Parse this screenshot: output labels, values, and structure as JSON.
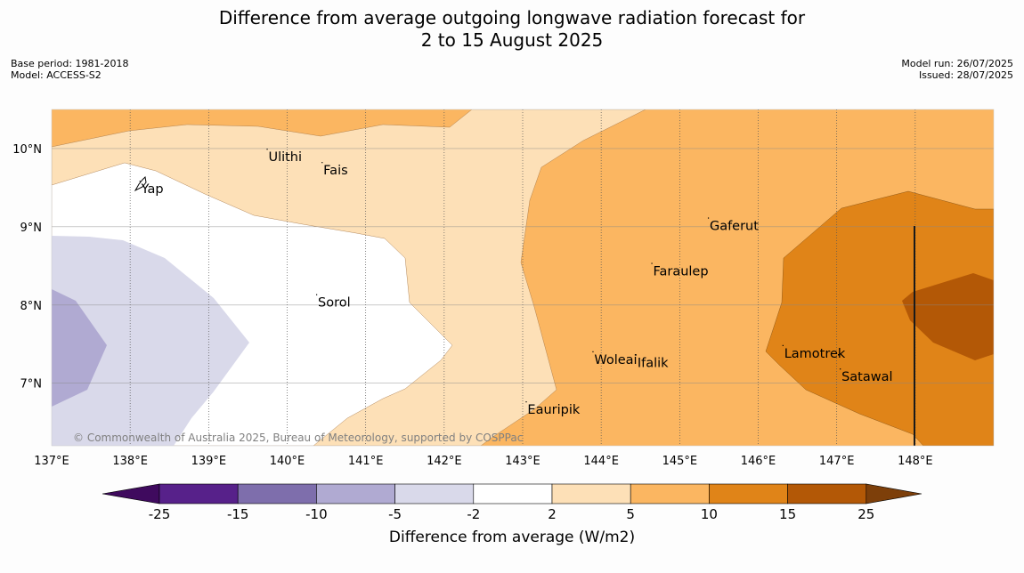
{
  "title": {
    "line1": "Difference from average outgoing longwave radiation forecast for",
    "line2": "2 to 15 August 2025"
  },
  "meta_left": {
    "base_period": "Base period: 1981-2018",
    "model": "Model: ACCESS-S2"
  },
  "meta_right": {
    "model_run": "Model run: 26/07/2025",
    "issued": "Issued: 28/07/2025"
  },
  "map": {
    "lon_range": [
      137,
      149
    ],
    "lat_range": [
      6.2,
      10.5
    ],
    "lon_ticks": [
      137,
      138,
      139,
      140,
      141,
      142,
      143,
      144,
      145,
      146,
      147,
      148
    ],
    "lon_tick_labels": [
      "137°E",
      "138°E",
      "139°E",
      "140°E",
      "141°E",
      "142°E",
      "143°E",
      "144°E",
      "145°E",
      "146°E",
      "147°E",
      "148°E"
    ],
    "lat_ticks": [
      7,
      8,
      9,
      10
    ],
    "lat_tick_labels": [
      "7°N",
      "8°N",
      "9°N",
      "10°N"
    ],
    "copyright": "© Commonwealth of Australia 2025, Bureau of Meteorology, supported by COSPPac",
    "places": [
      {
        "name": "Ulithi",
        "lon": 139.75,
        "lat": 9.93
      },
      {
        "name": "Fais",
        "lon": 140.45,
        "lat": 9.76
      },
      {
        "name": "Yap",
        "lon": 138.13,
        "lat": 9.52
      },
      {
        "name": "Gaferut",
        "lon": 145.37,
        "lat": 9.05
      },
      {
        "name": "Faraulep",
        "lon": 144.65,
        "lat": 8.47
      },
      {
        "name": "Sorol",
        "lon": 140.38,
        "lat": 8.07
      },
      {
        "name": "Woleai",
        "lon": 143.9,
        "lat": 7.34
      },
      {
        "name": "Ifalik",
        "lon": 144.45,
        "lat": 7.3
      },
      {
        "name": "Lamotrek",
        "lon": 146.32,
        "lat": 7.42
      },
      {
        "name": "Satawal",
        "lon": 147.05,
        "lat": 7.12
      },
      {
        "name": "Eauripik",
        "lon": 143.05,
        "lat": 6.7
      }
    ]
  },
  "colorbar": {
    "title": "Difference from average (W/m2)",
    "tick_labels": [
      "-25",
      "-15",
      "-10",
      "-5",
      "-2",
      "2",
      "5",
      "10",
      "15",
      "25"
    ],
    "colors": [
      "#3f0a5e",
      "#57218a",
      "#7e6eac",
      "#b0aad2",
      "#d9d9ea",
      "#ffffff",
      "#fde0b7",
      "#fbb661",
      "#e08418",
      "#b35806",
      "#7d3f0a"
    ]
  }
}
